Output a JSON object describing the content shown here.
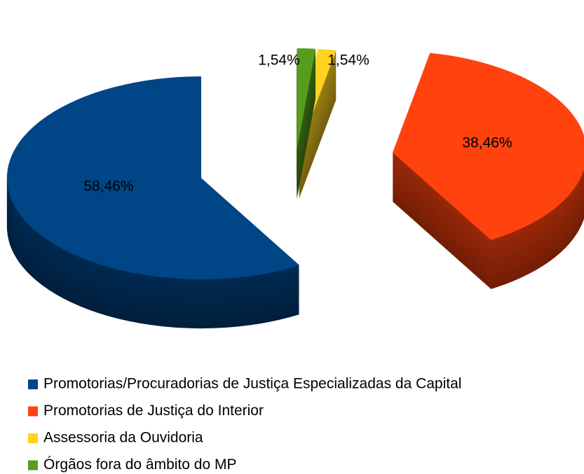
{
  "chart_data": {
    "type": "pie",
    "categories": [
      "Promotorias/Procuradorias de Justiça Especializadas da Capital",
      "Promotorias de Justiça do Interior",
      "Assessoria da Ouvidoria",
      "Órgãos fora do âmbito do MP"
    ],
    "values": [
      58.46,
      38.46,
      1.54,
      1.54
    ],
    "value_labels": [
      "58,46%",
      "38,46%",
      "1,54%",
      "1,54%"
    ],
    "colors": [
      "#004586",
      "#ff420e",
      "#ffd320",
      "#579d1c"
    ],
    "legend": "bottom"
  }
}
